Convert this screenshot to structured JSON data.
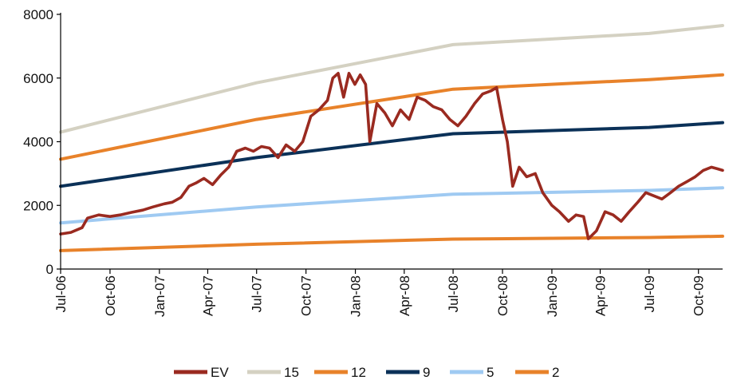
{
  "chart_data": {
    "type": "line",
    "ylim": [
      0,
      8000
    ],
    "y_ticks": [
      "0",
      "2000",
      "4000",
      "6000",
      "8000"
    ],
    "x_ticks": [
      "Jul-06",
      "Oct-06",
      "Jan-07",
      "Apr-07",
      "Jul-07",
      "Oct-07",
      "Jan-08",
      "Apr-08",
      "Jul-08",
      "Oct-08",
      "Jan-09",
      "Apr-09",
      "Jul-09",
      "Oct-09"
    ],
    "x_range": [
      "2006-07-01",
      "2009-11-15"
    ],
    "grid": false,
    "legend_position": "bottom",
    "series": [
      {
        "name": "EV",
        "color": "#9a2a20",
        "points": [
          [
            "2006-07-01",
            1100
          ],
          [
            "2006-07-20",
            1150
          ],
          [
            "2006-08-10",
            1300
          ],
          [
            "2006-08-20",
            1600
          ],
          [
            "2006-09-10",
            1700
          ],
          [
            "2006-10-01",
            1650
          ],
          [
            "2006-10-20",
            1700
          ],
          [
            "2006-11-10",
            1780
          ],
          [
            "2006-12-01",
            1850
          ],
          [
            "2006-12-20",
            1950
          ],
          [
            "2007-01-10",
            2050
          ],
          [
            "2007-01-25",
            2100
          ],
          [
            "2007-02-10",
            2250
          ],
          [
            "2007-02-25",
            2600
          ],
          [
            "2007-03-10",
            2700
          ],
          [
            "2007-03-25",
            2850
          ],
          [
            "2007-04-10",
            2650
          ],
          [
            "2007-04-25",
            2950
          ],
          [
            "2007-05-10",
            3200
          ],
          [
            "2007-05-25",
            3700
          ],
          [
            "2007-06-10",
            3800
          ],
          [
            "2007-06-25",
            3700
          ],
          [
            "2007-07-10",
            3850
          ],
          [
            "2007-07-25",
            3800
          ],
          [
            "2007-08-10",
            3500
          ],
          [
            "2007-08-25",
            3900
          ],
          [
            "2007-09-10",
            3700
          ],
          [
            "2007-09-25",
            4000
          ],
          [
            "2007-10-10",
            4800
          ],
          [
            "2007-10-25",
            5000
          ],
          [
            "2007-11-10",
            5300
          ],
          [
            "2007-11-20",
            6000
          ],
          [
            "2007-11-30",
            6150
          ],
          [
            "2007-12-10",
            5400
          ],
          [
            "2007-12-20",
            6150
          ],
          [
            "2007-12-31",
            5800
          ],
          [
            "2008-01-10",
            6100
          ],
          [
            "2008-01-20",
            5800
          ],
          [
            "2008-01-28",
            4000
          ],
          [
            "2008-02-10",
            5200
          ],
          [
            "2008-02-25",
            4900
          ],
          [
            "2008-03-10",
            4500
          ],
          [
            "2008-03-25",
            5000
          ],
          [
            "2008-04-10",
            4700
          ],
          [
            "2008-04-25",
            5400
          ],
          [
            "2008-05-10",
            5300
          ],
          [
            "2008-05-25",
            5100
          ],
          [
            "2008-06-10",
            5000
          ],
          [
            "2008-06-25",
            4700
          ],
          [
            "2008-07-10",
            4500
          ],
          [
            "2008-07-25",
            4800
          ],
          [
            "2008-08-10",
            5200
          ],
          [
            "2008-08-25",
            5500
          ],
          [
            "2008-09-10",
            5600
          ],
          [
            "2008-09-20",
            5700
          ],
          [
            "2008-10-01",
            4700
          ],
          [
            "2008-10-10",
            4000
          ],
          [
            "2008-10-20",
            2600
          ],
          [
            "2008-11-01",
            3200
          ],
          [
            "2008-11-15",
            2900
          ],
          [
            "2008-12-01",
            3000
          ],
          [
            "2008-12-15",
            2400
          ],
          [
            "2009-01-01",
            2000
          ],
          [
            "2009-01-15",
            1800
          ],
          [
            "2009-02-01",
            1500
          ],
          [
            "2009-02-15",
            1700
          ],
          [
            "2009-03-01",
            1650
          ],
          [
            "2009-03-10",
            950
          ],
          [
            "2009-03-25",
            1200
          ],
          [
            "2009-04-10",
            1800
          ],
          [
            "2009-04-25",
            1700
          ],
          [
            "2009-05-10",
            1500
          ],
          [
            "2009-05-25",
            1800
          ],
          [
            "2009-06-10",
            2100
          ],
          [
            "2009-06-25",
            2400
          ],
          [
            "2009-07-10",
            2300
          ],
          [
            "2009-07-25",
            2200
          ],
          [
            "2009-08-10",
            2400
          ],
          [
            "2009-08-25",
            2600
          ],
          [
            "2009-09-10",
            2750
          ],
          [
            "2009-09-25",
            2900
          ],
          [
            "2009-10-10",
            3100
          ],
          [
            "2009-10-25",
            3200
          ],
          [
            "2009-11-05",
            3150
          ],
          [
            "2009-11-15",
            3100
          ]
        ]
      },
      {
        "name": "15",
        "color": "#d4d1c2",
        "points": [
          [
            "2006-07-01",
            4300
          ],
          [
            "2007-07-01",
            5850
          ],
          [
            "2008-07-01",
            7050
          ],
          [
            "2009-07-01",
            7400
          ],
          [
            "2009-11-15",
            7650
          ]
        ]
      },
      {
        "name": "12",
        "color": "#e8822a",
        "points": [
          [
            "2006-07-01",
            3450
          ],
          [
            "2007-07-01",
            4700
          ],
          [
            "2008-07-01",
            5650
          ],
          [
            "2009-07-01",
            5950
          ],
          [
            "2009-11-15",
            6100
          ]
        ]
      },
      {
        "name": "9",
        "color": "#0b3158",
        "points": [
          [
            "2006-07-01",
            2600
          ],
          [
            "2007-07-01",
            3500
          ],
          [
            "2008-07-01",
            4250
          ],
          [
            "2009-07-01",
            4450
          ],
          [
            "2009-11-15",
            4600
          ]
        ]
      },
      {
        "name": "5",
        "color": "#9fcaf2",
        "points": [
          [
            "2006-07-01",
            1450
          ],
          [
            "2007-07-01",
            1950
          ],
          [
            "2008-07-01",
            2350
          ],
          [
            "2009-07-01",
            2470
          ],
          [
            "2009-11-15",
            2550
          ]
        ]
      },
      {
        "name": "2",
        "color": "#e8822a",
        "points": [
          [
            "2006-07-01",
            580
          ],
          [
            "2007-07-01",
            780
          ],
          [
            "2008-07-01",
            940
          ],
          [
            "2009-07-01",
            990
          ],
          [
            "2009-11-15",
            1030
          ]
        ]
      }
    ]
  }
}
